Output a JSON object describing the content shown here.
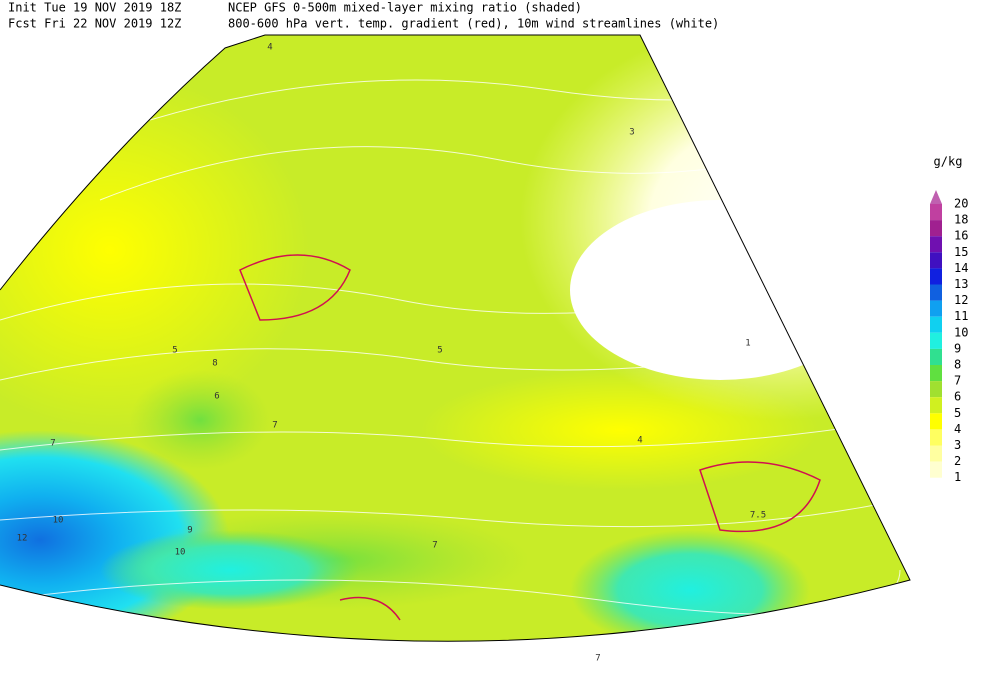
{
  "header": {
    "init": "Init  Tue 19 NOV 2019 18Z",
    "fcst": "Fcst Fri 22 NOV 2019 12Z",
    "title": "NCEP GFS 0-500m mixed-layer mixing ratio (shaded)",
    "subtitle": "800-600 hPa vert. temp. gradient (red), 10m wind streamlines (white)"
  },
  "colorbar": {
    "unit": "g/kg",
    "levels": [
      20,
      18,
      16,
      15,
      14,
      13,
      12,
      11,
      10,
      9,
      8,
      7,
      6,
      5,
      4,
      3,
      2,
      1
    ],
    "colors": [
      "#c040a0",
      "#a02090",
      "#7010b0",
      "#4010c0",
      "#1020e0",
      "#1060e0",
      "#10a0f0",
      "#10d0f0",
      "#20f0e0",
      "#30e090",
      "#60e040",
      "#a0e030",
      "#d0f020",
      "#ffff00",
      "#ffff60",
      "#ffffa0",
      "#ffffd0"
    ],
    "top_color": "#c060b0"
  },
  "map_labels": [
    "12",
    "10",
    "10",
    "9",
    "8",
    "7",
    "7",
    "7",
    "6",
    "5",
    "5",
    "4",
    "4",
    "3",
    "1",
    "7.5",
    "7"
  ]
}
